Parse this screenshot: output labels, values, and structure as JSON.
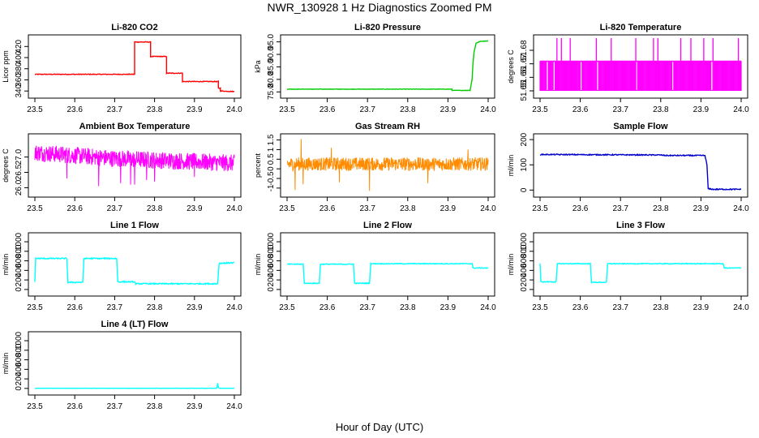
{
  "figure": {
    "title": "NWR_130928  1 Hz Diagnostics Zoomed PM",
    "xlabel": "Hour of Day (UTC)"
  },
  "chart_data": [
    {
      "id": "co2",
      "type": "line",
      "title": "Li-820 CO2",
      "ylabel": "Licor ppm",
      "xlim": [
        23.5,
        24.0
      ],
      "ylim": [
        333,
        435
      ],
      "yticks": [
        340,
        360,
        380,
        400,
        420
      ],
      "xticks": [
        23.5,
        23.6,
        23.7,
        23.8,
        23.9,
        24.0
      ],
      "color": "#ff0000",
      "noise": 0.6,
      "series": [
        {
          "points": [
            [
              23.5,
              370
            ],
            [
              23.75,
              370
            ],
            [
              23.75,
              428
            ],
            [
              23.79,
              428
            ],
            [
              23.79,
              402
            ],
            [
              23.83,
              402
            ],
            [
              23.83,
              372
            ],
            [
              23.87,
              372
            ],
            [
              23.87,
              357
            ],
            [
              23.96,
              357
            ],
            [
              23.96,
              345
            ],
            [
              23.965,
              345
            ],
            [
              23.965,
              340
            ],
            [
              24.0,
              339
            ]
          ]
        }
      ]
    },
    {
      "id": "pressure",
      "type": "line",
      "title": "Li-820 Pressure",
      "ylabel": "kPa",
      "xlim": [
        23.5,
        24.0
      ],
      "ylim": [
        73.8,
        96.5
      ],
      "yticks": [
        75,
        80,
        85,
        90,
        95
      ],
      "xticks": [
        23.5,
        23.6,
        23.7,
        23.8,
        23.9,
        24.0
      ],
      "color": "#00cc00",
      "noise": 0.08,
      "series": [
        {
          "points": [
            [
              23.5,
              76.1
            ],
            [
              23.91,
              76.1
            ],
            [
              23.91,
              75.6
            ],
            [
              23.955,
              75.6
            ],
            [
              23.96,
              80
            ],
            [
              23.962,
              86
            ],
            [
              23.965,
              91
            ],
            [
              23.97,
              94.5
            ],
            [
              23.98,
              95.2
            ],
            [
              24.0,
              95.4
            ]
          ]
        }
      ]
    },
    {
      "id": "licor_temp",
      "type": "spike",
      "title": "Li-820 Temperature",
      "ylabel": "degrees C",
      "xlim": [
        23.5,
        24.0
      ],
      "ylim": [
        51.647,
        51.689
      ],
      "yticks": [
        51.65,
        51.66,
        51.67,
        51.68
      ],
      "xticks": [
        23.5,
        23.6,
        23.7,
        23.8,
        23.9,
        24.0
      ],
      "color": "#ff00ff",
      "baseline": 51.65,
      "level": 51.672,
      "band_end": 24.0,
      "spike_top": 51.689,
      "spikes": [
        23.542,
        23.553,
        23.575,
        23.64,
        23.677,
        23.738,
        23.782,
        23.793,
        23.85,
        23.875,
        23.907,
        23.93,
        23.993
      ],
      "gaps": [
        23.518,
        23.535,
        23.602,
        23.643,
        23.74,
        23.83,
        23.927,
        23.93
      ]
    },
    {
      "id": "box_temp",
      "type": "noise",
      "title": "Ambient Box Temperature",
      "ylabel": "degrees C",
      "xlim": [
        23.5,
        24.0
      ],
      "ylim": [
        25.8,
        27.65
      ],
      "yticks": [
        26.0,
        26.5,
        27.0
      ],
      "xticks": [
        23.5,
        23.6,
        23.7,
        23.8,
        23.9,
        24.0
      ],
      "color": "#ff00ff",
      "mean": [
        [
          23.5,
          27.15
        ],
        [
          23.6,
          27.05
        ],
        [
          23.7,
          26.95
        ],
        [
          23.8,
          26.9
        ],
        [
          23.9,
          26.85
        ],
        [
          24.0,
          26.8
        ]
      ],
      "amp": 0.28,
      "dips": [
        [
          23.58,
          26.3
        ],
        [
          23.66,
          26.05
        ],
        [
          23.715,
          26.15
        ],
        [
          23.74,
          26.1
        ],
        [
          23.75,
          26.1
        ],
        [
          23.78,
          26.25
        ],
        [
          23.8,
          26.2
        ],
        [
          23.9,
          26.35
        ]
      ]
    },
    {
      "id": "rh",
      "type": "noise",
      "title": "Gas Stream RH",
      "ylabel": "percent",
      "xlim": [
        23.5,
        24.0
      ],
      "ylim": [
        -1.3,
        1.65
      ],
      "yticks": [
        -1.0,
        -0.5,
        0.0,
        0.5,
        1.0,
        1.5
      ],
      "xticks": [
        23.5,
        23.6,
        23.7,
        23.8,
        23.9,
        24.0
      ],
      "color": "#ff8c00",
      "mean": [
        [
          23.5,
          0.25
        ],
        [
          24.0,
          0.25
        ]
      ],
      "amp": 0.35,
      "dips": [
        [
          23.52,
          -1.1
        ],
        [
          23.535,
          1.55
        ],
        [
          23.54,
          -0.8
        ],
        [
          23.705,
          -1.15
        ],
        [
          23.63,
          -0.7
        ],
        [
          23.61,
          1.1
        ],
        [
          23.95,
          1.0
        ],
        [
          23.85,
          -0.75
        ]
      ]
    },
    {
      "id": "sample_flow",
      "type": "line",
      "title": "Sample Flow",
      "ylabel": "ml/min",
      "xlim": [
        23.5,
        24.0
      ],
      "ylim": [
        -15,
        210
      ],
      "yticks": [
        0,
        100,
        200
      ],
      "xticks": [
        23.5,
        23.6,
        23.7,
        23.8,
        23.9,
        24.0
      ],
      "color": "#0000cc",
      "noise": 2.0,
      "series": [
        {
          "points": [
            [
              23.5,
              141
            ],
            [
              23.8,
              139
            ],
            [
              23.81,
              137
            ],
            [
              23.91,
              137
            ],
            [
              23.915,
              100
            ],
            [
              23.918,
              5
            ],
            [
              23.93,
              3
            ],
            [
              24.0,
              3
            ]
          ]
        }
      ]
    },
    {
      "id": "line1",
      "type": "line",
      "title": "Line 1 Flow",
      "ylabel": "ml/min",
      "xlim": [
        23.5,
        24.0
      ],
      "ylim": [
        -70,
        1120
      ],
      "yticks": [
        0,
        200,
        400,
        600,
        800,
        1000
      ],
      "xticks": [
        23.5,
        23.6,
        23.7,
        23.8,
        23.9,
        24.0
      ],
      "color": "#00ffff",
      "noise": 12,
      "series": [
        {
          "points": [
            [
              23.5,
              170
            ],
            [
              23.502,
              650
            ],
            [
              23.58,
              650
            ],
            [
              23.583,
              150
            ],
            [
              23.62,
              150
            ],
            [
              23.623,
              650
            ],
            [
              23.705,
              650
            ],
            [
              23.708,
              160
            ],
            [
              23.75,
              160
            ],
            [
              23.752,
              120
            ],
            [
              23.958,
              120
            ],
            [
              23.962,
              550
            ],
            [
              24.0,
              560
            ]
          ]
        }
      ]
    },
    {
      "id": "line2",
      "type": "line",
      "title": "Line 2 Flow",
      "ylabel": "ml/min",
      "xlim": [
        23.5,
        24.0
      ],
      "ylim": [
        -70,
        1120
      ],
      "yticks": [
        0,
        200,
        400,
        600,
        800,
        1000
      ],
      "xticks": [
        23.5,
        23.6,
        23.7,
        23.8,
        23.9,
        24.0
      ],
      "color": "#00ffff",
      "noise": 8,
      "series": [
        {
          "points": [
            [
              23.5,
              530
            ],
            [
              23.54,
              530
            ],
            [
              23.543,
              130
            ],
            [
              23.58,
              130
            ],
            [
              23.583,
              530
            ],
            [
              23.665,
              530
            ],
            [
              23.668,
              130
            ],
            [
              23.705,
              130
            ],
            [
              23.708,
              540
            ],
            [
              23.96,
              540
            ],
            [
              23.962,
              450
            ],
            [
              24.0,
              450
            ]
          ]
        }
      ]
    },
    {
      "id": "line3",
      "type": "line",
      "title": "Line 3 Flow",
      "ylabel": "ml/min",
      "xlim": [
        23.5,
        24.0
      ],
      "ylim": [
        -70,
        1120
      ],
      "yticks": [
        0,
        200,
        400,
        600,
        800,
        1000
      ],
      "xticks": [
        23.5,
        23.6,
        23.7,
        23.8,
        23.9,
        24.0
      ],
      "color": "#00ffff",
      "noise": 8,
      "series": [
        {
          "points": [
            [
              23.5,
              540
            ],
            [
              23.502,
              160
            ],
            [
              23.54,
              160
            ],
            [
              23.543,
              540
            ],
            [
              23.625,
              540
            ],
            [
              23.628,
              150
            ],
            [
              23.665,
              150
            ],
            [
              23.668,
              540
            ],
            [
              23.955,
              540
            ],
            [
              23.958,
              450
            ],
            [
              24.0,
              450
            ]
          ]
        }
      ]
    },
    {
      "id": "line4",
      "type": "line",
      "title": "Line 4 (LT) Flow",
      "ylabel": "ml/min",
      "xlim": [
        23.5,
        24.0
      ],
      "ylim": [
        -70,
        1120
      ],
      "yticks": [
        0,
        200,
        400,
        600,
        800,
        1000
      ],
      "xticks": [
        23.5,
        23.6,
        23.7,
        23.8,
        23.9,
        24.0
      ],
      "color": "#00ffff",
      "noise": 1.5,
      "series": [
        {
          "points": [
            [
              23.5,
              3
            ],
            [
              23.955,
              3
            ],
            [
              23.957,
              30
            ],
            [
              23.958,
              110
            ],
            [
              23.96,
              20
            ],
            [
              23.962,
              3
            ],
            [
              24.0,
              3
            ]
          ]
        }
      ]
    }
  ]
}
